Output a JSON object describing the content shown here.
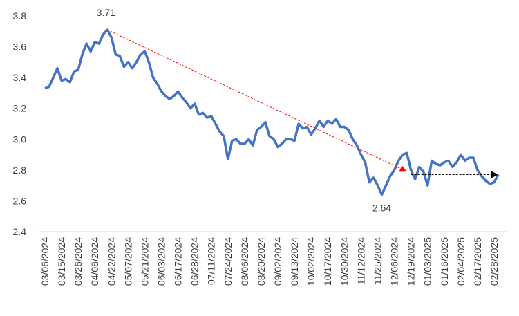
{
  "chart_data": {
    "type": "line",
    "categories": [
      "03/06/2024",
      null,
      null,
      null,
      "03/15/2024",
      null,
      null,
      null,
      "03/26/2024",
      null,
      null,
      null,
      "04/08/2024",
      null,
      null,
      null,
      "04/22/2024",
      null,
      null,
      null,
      "05/07/2024",
      null,
      null,
      null,
      "05/21/2024",
      null,
      null,
      null,
      "06/03/2024",
      null,
      null,
      null,
      "06/17/2024",
      null,
      null,
      null,
      "06/28/2024",
      null,
      null,
      null,
      "07/11/2024",
      null,
      null,
      null,
      "07/24/2024",
      null,
      null,
      null,
      "08/06/2024",
      null,
      null,
      null,
      "08/20/2024",
      null,
      null,
      null,
      "09/02/2024",
      null,
      null,
      null,
      "09/13/2024",
      null,
      null,
      null,
      "10/02/2024",
      null,
      null,
      null,
      "10/17/2024",
      null,
      null,
      null,
      "10/30/2024",
      null,
      null,
      null,
      "11/12/2024",
      null,
      null,
      null,
      "11/25/2024",
      null,
      null,
      null,
      "12/06/2024",
      null,
      null,
      null,
      "12/19/2024",
      null,
      null,
      null,
      "01/03/2025",
      null,
      null,
      null,
      "01/16/2025",
      null,
      null,
      null,
      "02/04/2025",
      null,
      null,
      null,
      "02/17/2025",
      null,
      null,
      null,
      "02/28/2025",
      null
    ],
    "values": [
      3.33,
      3.34,
      3.4,
      3.46,
      3.38,
      3.39,
      3.37,
      3.44,
      3.45,
      3.55,
      3.62,
      3.57,
      3.63,
      3.62,
      3.68,
      3.71,
      3.66,
      3.55,
      3.54,
      3.47,
      3.5,
      3.46,
      3.5,
      3.55,
      3.57,
      3.5,
      3.4,
      3.36,
      3.31,
      3.28,
      3.26,
      3.28,
      3.31,
      3.27,
      3.24,
      3.2,
      3.23,
      3.16,
      3.17,
      3.14,
      3.15,
      3.1,
      3.05,
      3.02,
      2.87,
      2.99,
      3.0,
      2.97,
      2.97,
      3.0,
      2.96,
      3.06,
      3.08,
      3.11,
      3.02,
      3.0,
      2.95,
      2.97,
      3.0,
      3.0,
      2.99,
      3.1,
      3.07,
      3.08,
      3.03,
      3.07,
      3.12,
      3.08,
      3.12,
      3.1,
      3.13,
      3.08,
      3.08,
      3.06,
      3.0,
      2.96,
      2.9,
      2.85,
      2.72,
      2.75,
      2.7,
      2.64,
      2.7,
      2.76,
      2.8,
      2.86,
      2.9,
      2.91,
      2.8,
      2.74,
      2.82,
      2.79,
      2.7,
      2.86,
      2.84,
      2.83,
      2.85,
      2.86,
      2.82,
      2.85,
      2.9,
      2.86,
      2.88,
      2.88,
      2.8,
      2.76,
      2.73,
      2.71,
      2.72,
      2.77
    ],
    "color": "#4472c4",
    "ylim": [
      2.4,
      3.8
    ],
    "yticks": [
      2.4,
      2.6,
      2.8,
      {
        "value": 3,
        "label": "3.0"
      },
      3.2,
      3.4,
      3.6,
      3.8
    ],
    "grid": false,
    "arrows": [
      {
        "start": {
          "index": 15,
          "value": 3.71
        },
        "end": {
          "index": 87,
          "value": 2.79
        },
        "color": "#ff0000"
      },
      {
        "start": {
          "index": 88,
          "value": 2.77
        },
        "end": {
          "index": 109,
          "value": 2.77
        },
        "color": "#000000"
      }
    ]
  }
}
